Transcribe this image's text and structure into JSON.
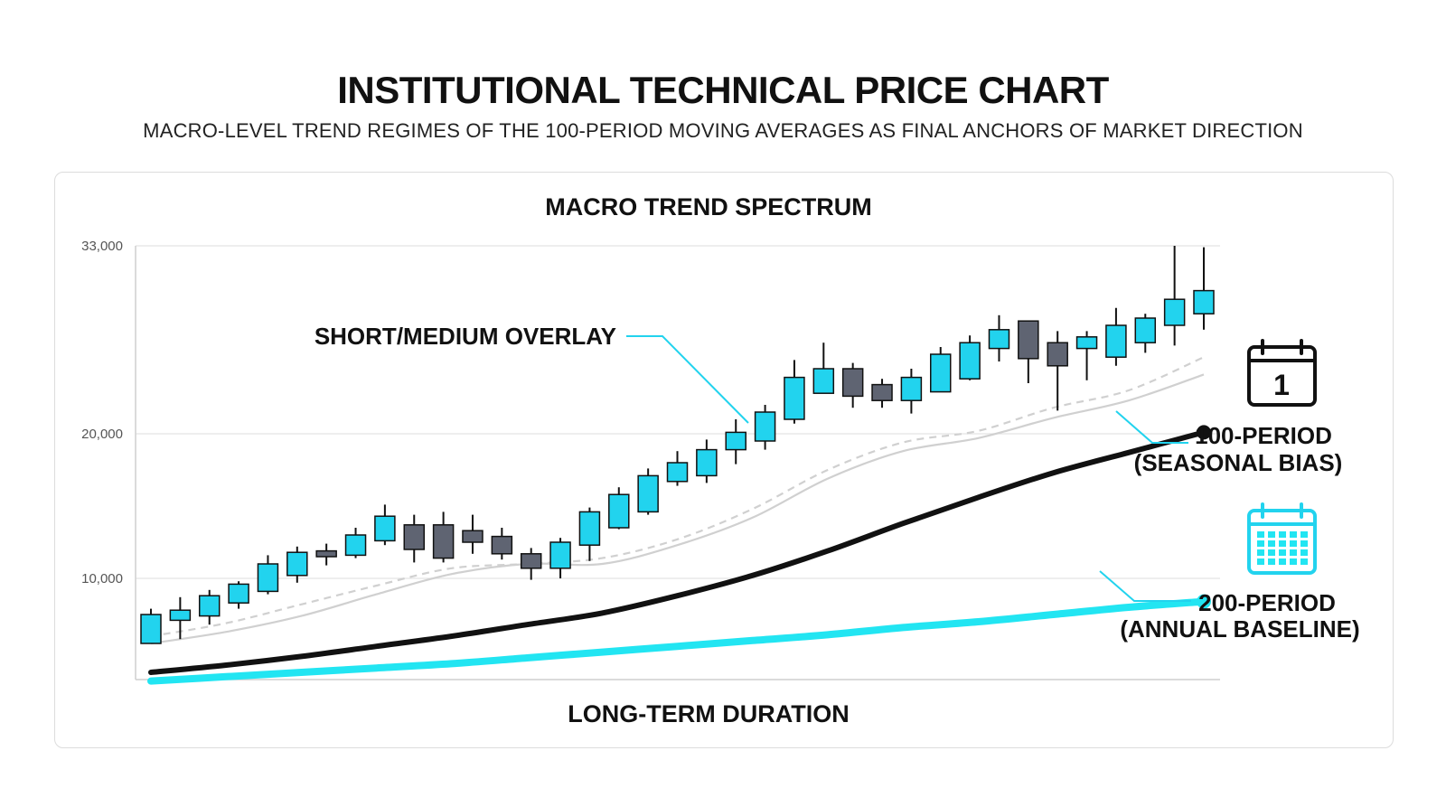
{
  "header": {
    "title": "INSTITUTIONAL TECHNICAL PRICE CHART",
    "subtitle": "MACRO-LEVEL TREND REGIMES OF THE 100-PERIOD MOVING AVERAGES AS FINAL ANCHORS OF MARKET DIRECTION"
  },
  "colors": {
    "bull": "#22d3ee",
    "bear": "#5f6472",
    "ma_100": "#111111",
    "ma_200": "#22e5f2",
    "overlay": "#d0d0d0"
  },
  "icons": {
    "ma_100": "calendar-day-icon",
    "ma_200": "calendar-month-icon"
  },
  "chart_data": {
    "type": "candlestick",
    "title": "MACRO TREND SPECTRUM",
    "xlabel": "LONG-TERM DURATION",
    "ylabel": "",
    "ylim": [
      3000,
      33000
    ],
    "yticks": [
      10000,
      20000,
      33000
    ],
    "ytick_labels": [
      "10,000",
      "20,000",
      "33,000"
    ],
    "grid": true,
    "candles": [
      {
        "o": 5500,
        "h": 7900,
        "l": 5500,
        "c": 7500
      },
      {
        "o": 7100,
        "h": 8700,
        "l": 5800,
        "c": 7800
      },
      {
        "o": 7400,
        "h": 9200,
        "l": 6800,
        "c": 8800
      },
      {
        "o": 8300,
        "h": 9800,
        "l": 7900,
        "c": 9600
      },
      {
        "o": 9100,
        "h": 11600,
        "l": 8900,
        "c": 11000
      },
      {
        "o": 10200,
        "h": 12200,
        "l": 9700,
        "c": 11800
      },
      {
        "o": 11900,
        "h": 12400,
        "l": 10900,
        "c": 11500
      },
      {
        "o": 11600,
        "h": 13500,
        "l": 11400,
        "c": 13000
      },
      {
        "o": 12600,
        "h": 15100,
        "l": 12300,
        "c": 14300
      },
      {
        "o": 13700,
        "h": 14400,
        "l": 11100,
        "c": 12000
      },
      {
        "o": 13700,
        "h": 14600,
        "l": 11100,
        "c": 11400
      },
      {
        "o": 13300,
        "h": 14400,
        "l": 11700,
        "c": 12500
      },
      {
        "o": 12900,
        "h": 13500,
        "l": 11300,
        "c": 11700
      },
      {
        "o": 11700,
        "h": 12100,
        "l": 9900,
        "c": 10700
      },
      {
        "o": 10700,
        "h": 12800,
        "l": 10000,
        "c": 12500
      },
      {
        "o": 12300,
        "h": 14900,
        "l": 11200,
        "c": 14600
      },
      {
        "o": 13500,
        "h": 16300,
        "l": 13400,
        "c": 15800
      },
      {
        "o": 14600,
        "h": 17600,
        "l": 14400,
        "c": 17100
      },
      {
        "o": 16700,
        "h": 18800,
        "l": 16400,
        "c": 18000
      },
      {
        "o": 17100,
        "h": 19600,
        "l": 16600,
        "c": 18900
      },
      {
        "o": 18900,
        "h": 21000,
        "l": 17900,
        "c": 20100
      },
      {
        "o": 19500,
        "h": 22000,
        "l": 18900,
        "c": 21500
      },
      {
        "o": 21000,
        "h": 25100,
        "l": 20700,
        "c": 23900
      },
      {
        "o": 22800,
        "h": 26300,
        "l": 22800,
        "c": 24500
      },
      {
        "o": 24500,
        "h": 24900,
        "l": 21800,
        "c": 22600
      },
      {
        "o": 23400,
        "h": 23800,
        "l": 21800,
        "c": 22300
      },
      {
        "o": 22300,
        "h": 24500,
        "l": 21400,
        "c": 23900
      },
      {
        "o": 22900,
        "h": 26000,
        "l": 22900,
        "c": 25500
      },
      {
        "o": 23800,
        "h": 26800,
        "l": 23700,
        "c": 26300
      },
      {
        "o": 25900,
        "h": 28200,
        "l": 25000,
        "c": 27200
      },
      {
        "o": 27800,
        "h": 27800,
        "l": 23500,
        "c": 25200
      },
      {
        "o": 26300,
        "h": 27100,
        "l": 21600,
        "c": 24700
      },
      {
        "o": 25900,
        "h": 27100,
        "l": 23700,
        "c": 26700
      },
      {
        "o": 25300,
        "h": 28700,
        "l": 24700,
        "c": 27500
      },
      {
        "o": 26300,
        "h": 28300,
        "l": 25600,
        "c": 28000
      },
      {
        "o": 27500,
        "h": 33000,
        "l": 26100,
        "c": 29300
      },
      {
        "o": 28300,
        "h": 32900,
        "l": 27200,
        "c": 29900
      }
    ],
    "series": [
      {
        "name": "100-PERIOD (SEASONAL BIAS)",
        "style": "solid",
        "values": [
          3500,
          4000,
          4600,
          5300,
          6000,
          6800,
          7600,
          8800,
          10200,
          11900,
          13800,
          15600,
          17300,
          18700,
          20100
        ]
      },
      {
        "name": "200-PERIOD (ANNUAL BASELINE)",
        "style": "solid",
        "values": [
          2900,
          3200,
          3500,
          3800,
          4100,
          4500,
          4900,
          5300,
          5700,
          6100,
          6600,
          7000,
          7500,
          8000,
          8400
        ]
      },
      {
        "name": "SHORT/MEDIUM OVERLAY",
        "style": "dashed",
        "values": [
          6000,
          6900,
          8200,
          9500,
          10700,
          11000,
          11400,
          12700,
          14800,
          17500,
          19400,
          20200,
          21800,
          23000,
          25300
        ]
      },
      {
        "name": "SHORT/MEDIUM OVERLAY",
        "style": "solid-light",
        "values": [
          5500,
          6300,
          7400,
          8900,
          10300,
          11000,
          11000,
          12300,
          14200,
          16900,
          18800,
          19700,
          21100,
          22300,
          24100
        ]
      }
    ],
    "annotations": [
      {
        "id": "overlay",
        "text": "SHORT/MEDIUM OVERLAY"
      },
      {
        "id": "ma100_line1",
        "text": "100-PERIOD"
      },
      {
        "id": "ma100_line2",
        "text": "(SEASONAL BIAS)"
      },
      {
        "id": "ma200_line1",
        "text": "200-PERIOD"
      },
      {
        "id": "ma200_line2",
        "text": "(ANNUAL BASELINE)"
      },
      {
        "id": "calendar_day",
        "text": "1"
      }
    ]
  }
}
